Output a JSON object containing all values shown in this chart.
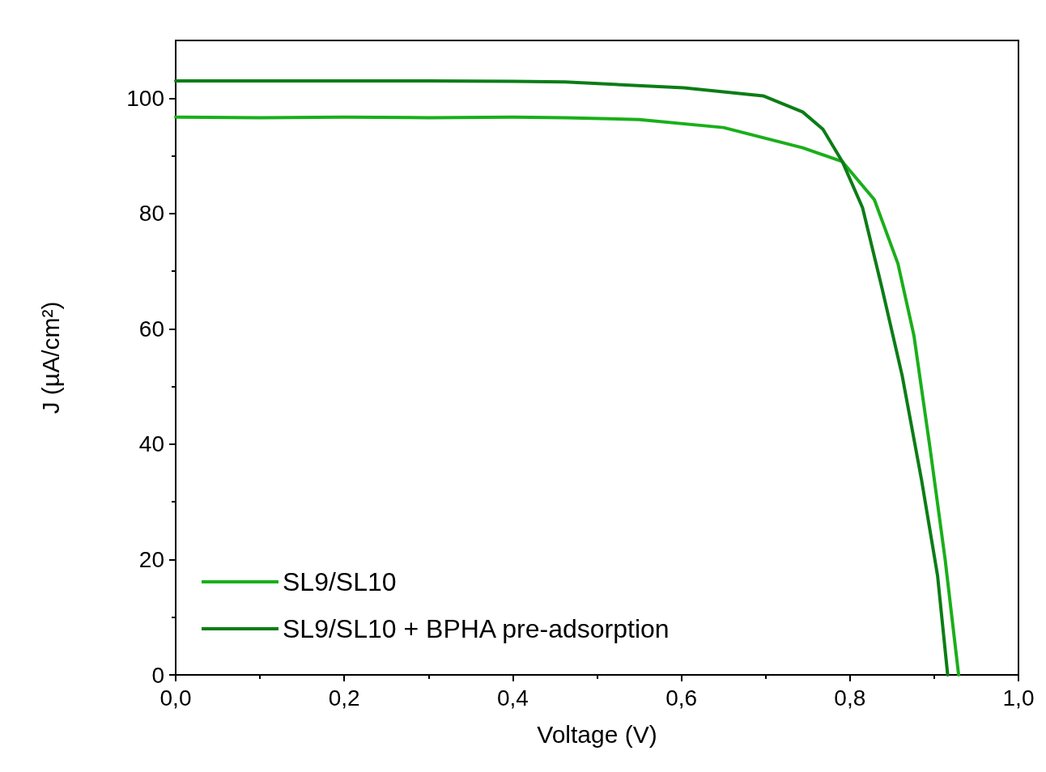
{
  "chart_data": {
    "type": "line",
    "xlabel": "Voltage (V)",
    "ylabel": "J (µA/cm²)",
    "xlim": [
      0,
      1
    ],
    "xticks": [
      {
        "value": 0,
        "label": "0,0"
      },
      {
        "value": 0.2,
        "label": "0,2"
      },
      {
        "value": 0.4,
        "label": "0,4"
      },
      {
        "value": 0.6,
        "label": "0,6"
      },
      {
        "value": 0.8,
        "label": "0,8"
      },
      {
        "value": 1,
        "label": "1,0"
      }
    ],
    "ylim": [
      0,
      110
    ],
    "yticks": [
      0,
      20,
      40,
      60,
      80,
      100
    ],
    "grid": false,
    "legend": "bottom left",
    "marker": "none",
    "line_style": "solid",
    "series": [
      {
        "name": "SL9/SL10",
        "color": "#1aaf1a",
        "x": [
          0,
          0.1,
          0.2,
          0.3,
          0.4,
          0.462,
          0.55,
          0.65,
          0.744,
          0.791,
          0.829,
          0.857,
          0.876,
          0.895,
          0.913,
          0.929
        ],
        "values": [
          96.7,
          96.6,
          96.7,
          96.6,
          96.7,
          96.6,
          96.3,
          94.9,
          91.4,
          89.0,
          82.4,
          71.3,
          58.8,
          39.4,
          20.0,
          0
        ]
      },
      {
        "name": "SL9/SL10 + BPHA pre-adsorption",
        "color": "#0b7d16",
        "x": [
          0,
          0.1,
          0.2,
          0.3,
          0.4,
          0.462,
          0.603,
          0.697,
          0.744,
          0.768,
          0.791,
          0.815,
          0.838,
          0.862,
          0.885,
          0.904,
          0.916
        ],
        "values": [
          103.0,
          103.0,
          103.0,
          103.0,
          102.9,
          102.8,
          101.8,
          100.4,
          97.6,
          94.6,
          89.0,
          81.0,
          67.1,
          51.9,
          33.8,
          17.2,
          0
        ]
      }
    ]
  }
}
